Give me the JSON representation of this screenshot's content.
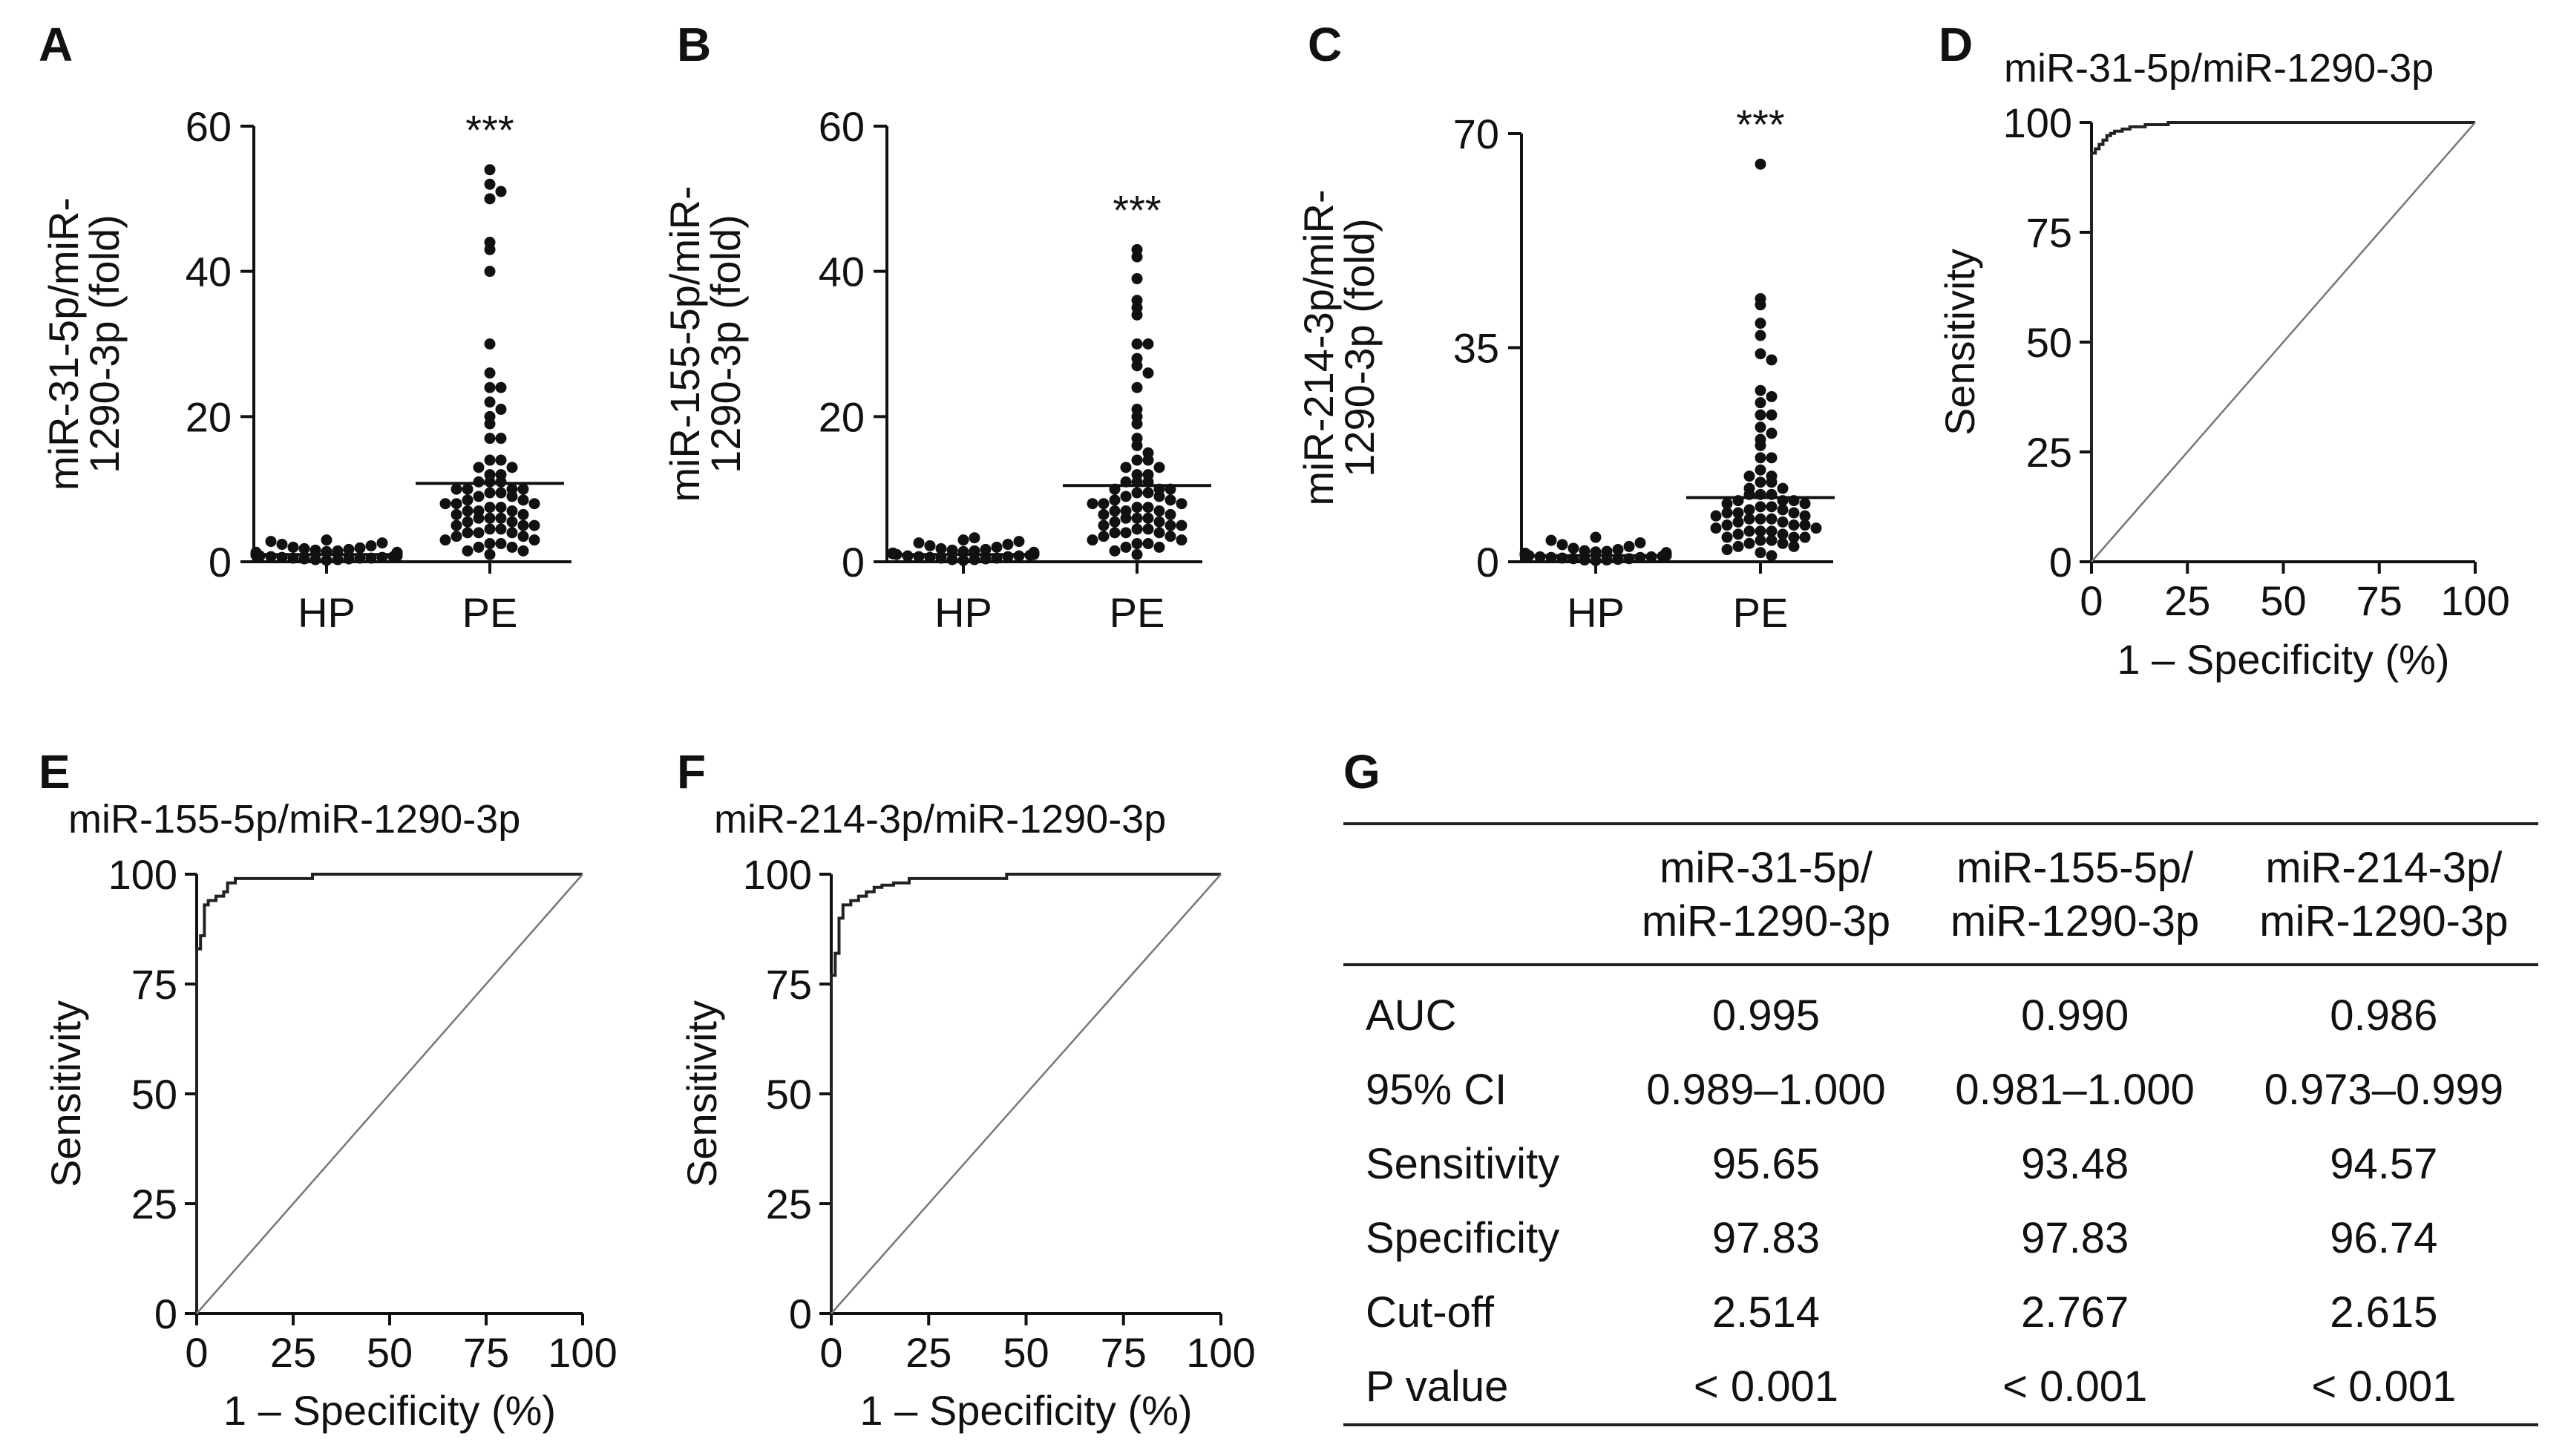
{
  "panel_labels": [
    "A",
    "B",
    "C",
    "D",
    "E",
    "F",
    "G"
  ],
  "chart_data": [
    {
      "panel": "A",
      "type": "scatter",
      "title": "",
      "xlabel": "",
      "ylabel_lines": [
        "miR-31-5p/miR-",
        "1290-3p (fold)"
      ],
      "categories": [
        "HP",
        "PE"
      ],
      "ylim": [
        0,
        60
      ],
      "yticks": [
        0,
        20,
        40,
        60
      ],
      "significance": "***",
      "means": [
        1.0,
        10.8
      ],
      "series": [
        {
          "name": "HP",
          "values": [
            0.2,
            0.3,
            0.3,
            0.4,
            0.4,
            0.5,
            0.5,
            0.5,
            0.6,
            0.6,
            0.7,
            0.7,
            0.8,
            0.8,
            0.9,
            0.9,
            1.0,
            1.0,
            1.1,
            1.1,
            1.2,
            1.2,
            1.3,
            1.3,
            1.4,
            1.5,
            1.6,
            1.7,
            1.8,
            1.9,
            2.0,
            2.2,
            2.4,
            2.6,
            2.8,
            3.0
          ]
        },
        {
          "name": "PE",
          "values": [
            54,
            52,
            51,
            50,
            44,
            43,
            40,
            30,
            26,
            24,
            24,
            22,
            21,
            20,
            19,
            17,
            17,
            14,
            14,
            13,
            13,
            12,
            12,
            11,
            11,
            11,
            10,
            10,
            10,
            10,
            9.5,
            9.5,
            9,
            9,
            8.5,
            8.5,
            8,
            8,
            8,
            7.5,
            7.5,
            7,
            7,
            7,
            6.5,
            6.5,
            6,
            6,
            6,
            5.5,
            5.5,
            5,
            5,
            5,
            4.5,
            4.5,
            4,
            4,
            4,
            3.5,
            3.5,
            3,
            3,
            2.5,
            2.5,
            2,
            2,
            1.5,
            1.5,
            1
          ]
        }
      ]
    },
    {
      "panel": "B",
      "type": "scatter",
      "title": "",
      "xlabel": "",
      "ylabel_lines": [
        "miR-155-5p/miR-",
        "1290-3p (fold)"
      ],
      "categories": [
        "HP",
        "PE"
      ],
      "ylim": [
        0,
        60
      ],
      "yticks": [
        0,
        20,
        40,
        60
      ],
      "significance": "***",
      "means": [
        1.0,
        10.5
      ],
      "series": [
        {
          "name": "HP",
          "values": [
            0.2,
            0.3,
            0.3,
            0.4,
            0.5,
            0.5,
            0.6,
            0.7,
            0.7,
            0.8,
            0.8,
            0.9,
            1.0,
            1.0,
            1.1,
            1.2,
            1.2,
            1.3,
            1.4,
            1.5,
            1.6,
            1.7,
            1.8,
            2.0,
            2.2,
            2.4,
            2.6,
            2.8,
            3.0,
            3.3
          ]
        },
        {
          "name": "PE",
          "values": [
            43,
            42,
            39,
            36,
            35,
            34,
            30,
            30,
            28,
            27,
            26,
            24,
            21,
            20,
            19,
            17,
            16,
            15,
            14,
            14,
            13,
            13,
            12,
            12,
            11,
            11,
            11,
            10,
            10,
            10,
            9.5,
            9.5,
            9,
            9,
            8.5,
            8.5,
            8,
            8,
            8,
            7.5,
            7.5,
            7,
            7,
            7,
            6.5,
            6.5,
            6,
            6,
            6,
            5.5,
            5.5,
            5,
            5,
            5,
            4.5,
            4.5,
            4,
            4,
            4,
            3.5,
            3.5,
            3,
            3,
            2.5,
            2.5,
            2,
            2,
            1.5,
            1
          ]
        }
      ]
    },
    {
      "panel": "C",
      "type": "scatter",
      "title": "",
      "xlabel": "",
      "ylabel_lines": [
        "miR-214-3p/miR-",
        "1290-3p (fold)"
      ],
      "categories": [
        "HP",
        "PE"
      ],
      "ylim": [
        0,
        70
      ],
      "yticks": [
        0,
        35,
        70
      ],
      "significance": "***",
      "means": [
        1.0,
        10.5
      ],
      "series": [
        {
          "name": "HP",
          "values": [
            0.2,
            0.3,
            0.3,
            0.4,
            0.5,
            0.5,
            0.6,
            0.7,
            0.7,
            0.8,
            0.8,
            0.9,
            1.0,
            1.0,
            1.1,
            1.2,
            1.2,
            1.3,
            1.4,
            1.5,
            1.6,
            1.7,
            1.8,
            2.0,
            2.2,
            2.5,
            2.8,
            3.1,
            3.5,
            4.0
          ]
        },
        {
          "name": "PE",
          "values": [
            65,
            43,
            42,
            39,
            37,
            34,
            33,
            28,
            27,
            26,
            24,
            24,
            22,
            21,
            20,
            19,
            17,
            17,
            15,
            14,
            14,
            13,
            13,
            12,
            12,
            11,
            11,
            11,
            10,
            10,
            10,
            9.5,
            9.5,
            9,
            9,
            8.5,
            8.5,
            8,
            8,
            8,
            7.5,
            7.5,
            7,
            7,
            7,
            6.5,
            6.5,
            6,
            6,
            6,
            5.5,
            5.5,
            5,
            5,
            5,
            4.5,
            4.5,
            4,
            4,
            4,
            3.5,
            3.5,
            3,
            3,
            2.5,
            2.5,
            2,
            1.5,
            1
          ]
        }
      ]
    },
    {
      "panel": "D",
      "type": "line",
      "title": "miR-31-5p/miR-1290-3p",
      "xlabel": "1 – Specificity (%)",
      "ylabel": "Sensitivity",
      "xlim": [
        0,
        100
      ],
      "ylim": [
        0,
        100
      ],
      "xticks": [
        0,
        25,
        50,
        75,
        100
      ],
      "yticks": [
        0,
        25,
        50,
        75,
        100
      ],
      "series": [
        {
          "name": "ROC",
          "x": [
            0,
            0,
            1,
            1,
            2,
            2,
            3,
            3,
            4,
            4,
            5,
            5,
            6,
            6,
            8,
            8,
            10,
            10,
            14,
            14,
            20,
            20,
            100
          ],
          "y": [
            0,
            93,
            93,
            94,
            94,
            95,
            95,
            96,
            96,
            97,
            97,
            97.5,
            97.5,
            98,
            98,
            98.5,
            98.5,
            99,
            99,
            99.5,
            99.5,
            100,
            100
          ]
        },
        {
          "name": "Reference",
          "x": [
            0,
            100
          ],
          "y": [
            0,
            100
          ]
        }
      ]
    },
    {
      "panel": "E",
      "type": "line",
      "title": "miR-155-5p/miR-1290-3p",
      "xlabel": "1 – Specificity (%)",
      "ylabel": "Sensitivity",
      "xlim": [
        0,
        100
      ],
      "ylim": [
        0,
        100
      ],
      "xticks": [
        0,
        25,
        50,
        75,
        100
      ],
      "yticks": [
        0,
        25,
        50,
        75,
        100
      ],
      "series": [
        {
          "name": "ROC",
          "x": [
            0,
            0,
            1,
            1,
            2,
            2,
            3,
            3,
            5,
            5,
            7,
            7,
            8,
            8,
            10,
            10,
            30,
            30,
            100
          ],
          "y": [
            0,
            83,
            83,
            86,
            86,
            93,
            93,
            94,
            94,
            95,
            95,
            96,
            96,
            98,
            98,
            99,
            99,
            100,
            100
          ]
        },
        {
          "name": "Reference",
          "x": [
            0,
            100
          ],
          "y": [
            0,
            100
          ]
        }
      ]
    },
    {
      "panel": "F",
      "type": "line",
      "title": "miR-214-3p/miR-1290-3p",
      "xlabel": "1 – Specificity (%)",
      "ylabel": "Sensitivity",
      "xlim": [
        0,
        100
      ],
      "ylim": [
        0,
        100
      ],
      "xticks": [
        0,
        25,
        50,
        75,
        100
      ],
      "yticks": [
        0,
        25,
        50,
        75,
        100
      ],
      "series": [
        {
          "name": "ROC",
          "x": [
            0,
            0,
            1,
            1,
            2,
            2,
            3,
            3,
            5,
            5,
            7,
            7,
            9,
            9,
            11,
            11,
            13,
            13,
            16,
            16,
            20,
            20,
            45,
            45,
            100
          ],
          "y": [
            0,
            77,
            77,
            82,
            82,
            90,
            90,
            93,
            93,
            94,
            94,
            95,
            95,
            96,
            96,
            97,
            97,
            97.5,
            97.5,
            98,
            98,
            99,
            99,
            100,
            100
          ]
        },
        {
          "name": "Reference",
          "x": [
            0,
            100
          ],
          "y": [
            0,
            100
          ]
        }
      ]
    },
    {
      "panel": "G",
      "type": "table",
      "columns": [
        {
          "line1": "",
          "line2": ""
        },
        {
          "line1": "miR-31-5p/",
          "line2": "miR-1290-3p"
        },
        {
          "line1": "miR-155-5p/",
          "line2": "miR-1290-3p"
        },
        {
          "line1": "miR-214-3p/",
          "line2": "miR-1290-3p"
        }
      ],
      "rows": [
        [
          "AUC",
          "0.995",
          "0.990",
          "0.986"
        ],
        [
          "95% CI",
          "0.989–1.000",
          "0.981–1.000",
          "0.973–0.999"
        ],
        [
          "Sensitivity",
          "95.65",
          "93.48",
          "94.57"
        ],
        [
          "Specificity",
          "97.83",
          "97.83",
          "96.74"
        ],
        [
          "Cut-off",
          "2.514",
          "2.767",
          "2.615"
        ],
        [
          "P value",
          "< 0.001",
          "< 0.001",
          "< 0.001"
        ]
      ]
    }
  ]
}
